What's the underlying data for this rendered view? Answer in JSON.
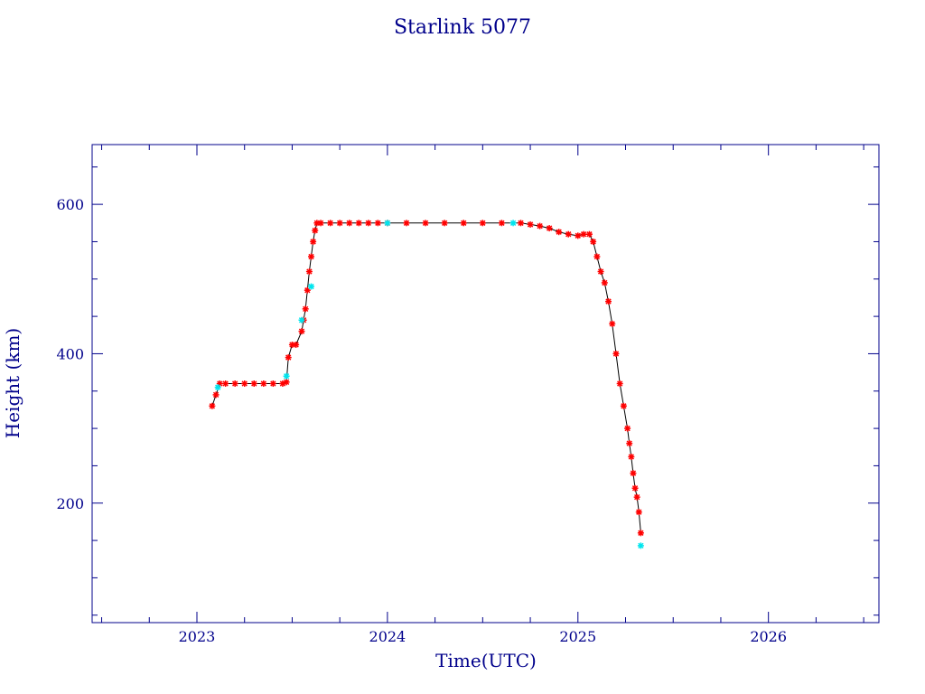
{
  "chart_data": {
    "type": "scatter",
    "title": "Starlink 5077",
    "xlabel": "Time(UTC)",
    "ylabel": "Height (km)",
    "xlim": [
      2022.45,
      2026.58
    ],
    "ylim": [
      40,
      680
    ],
    "x_ticks": [
      2023,
      2024,
      2025,
      2026
    ],
    "x_tick_labels": [
      "2023",
      "2024",
      "2025",
      "2026"
    ],
    "y_ticks": [
      200,
      400,
      600
    ],
    "y_tick_labels": [
      "200",
      "400",
      "600"
    ],
    "grid": false,
    "colors": {
      "axes": "#00008b",
      "text": "#00008b",
      "points_primary": "#ff0000",
      "points_secondary": "#00e5ee",
      "connecting_line": "#000000"
    },
    "series": [
      {
        "marker": "asterisk",
        "color": "#ff0000",
        "x": [
          2023.08,
          2023.1,
          2023.12,
          2023.15,
          2023.2,
          2023.25,
          2023.3,
          2023.35,
          2023.4,
          2023.45,
          2023.47,
          2023.48,
          2023.5,
          2023.52,
          2023.55,
          2023.56,
          2023.57,
          2023.58,
          2023.59,
          2023.6,
          2023.61,
          2023.62,
          2023.63,
          2023.65,
          2023.7,
          2023.75,
          2023.8,
          2023.85,
          2023.9,
          2023.95,
          2024.0,
          2024.1,
          2024.2,
          2024.3,
          2024.4,
          2024.5,
          2024.6,
          2024.7,
          2024.75,
          2024.8,
          2024.85,
          2024.9,
          2024.95,
          2025.0,
          2025.03,
          2025.06,
          2025.08,
          2025.1,
          2025.12,
          2025.14,
          2025.16,
          2025.18,
          2025.2,
          2025.22,
          2025.24,
          2025.26,
          2025.27,
          2025.28,
          2025.29,
          2025.3,
          2025.31,
          2025.32,
          2025.33
        ],
        "y": [
          330,
          345,
          360,
          360,
          360,
          360,
          360,
          360,
          360,
          360,
          362,
          395,
          412,
          412,
          430,
          445,
          460,
          485,
          510,
          530,
          550,
          565,
          575,
          575,
          575,
          575,
          575,
          575,
          575,
          575,
          575,
          575,
          575,
          575,
          575,
          575,
          575,
          575,
          573,
          571,
          568,
          563,
          560,
          558,
          560,
          560,
          550,
          530,
          510,
          495,
          470,
          440,
          400,
          360,
          330,
          300,
          280,
          262,
          240,
          220,
          208,
          188,
          160
        ]
      },
      {
        "marker": "asterisk",
        "color": "#00e5ee",
        "x": [
          2023.11,
          2023.47,
          2023.55,
          2023.6,
          2024.0,
          2024.66,
          2025.33
        ],
        "y": [
          355,
          370,
          445,
          490,
          575,
          575,
          143
        ]
      }
    ]
  }
}
